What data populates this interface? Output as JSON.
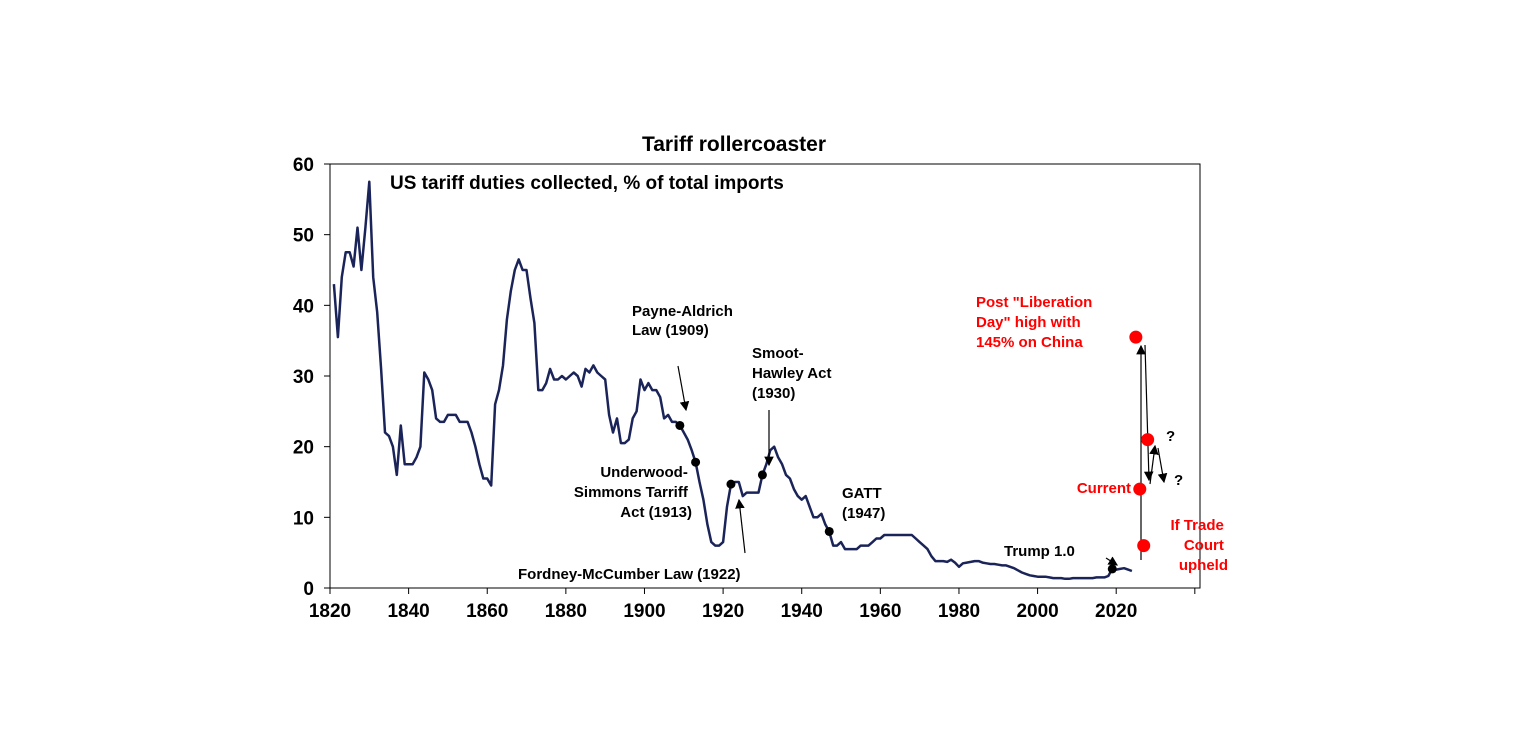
{
  "chart_data": {
    "type": "line",
    "title": "Tariff rollercoaster",
    "subtitle": "US tariff duties collected, % of total imports",
    "xlabel": "",
    "ylabel": "",
    "xlim": [
      1820,
      2040
    ],
    "ylim": [
      0,
      60
    ],
    "grid": false,
    "x_ticks": [
      "1820",
      "1840",
      "1860",
      "1880",
      "1900",
      "1920",
      "1940",
      "1960",
      "1980",
      "2000",
      "2020"
    ],
    "y_ticks": [
      "0",
      "10",
      "20",
      "30",
      "40",
      "50",
      "60"
    ],
    "series": [
      {
        "name": "",
        "color": "#1b2458",
        "points": [
          [
            1821,
            43
          ],
          [
            1822,
            35.5
          ],
          [
            1823,
            44
          ],
          [
            1824,
            47.5
          ],
          [
            1825,
            47.5
          ],
          [
            1826,
            45.5
          ],
          [
            1827,
            51
          ],
          [
            1828,
            45
          ],
          [
            1829,
            51
          ],
          [
            1830,
            57.5
          ],
          [
            1831,
            44
          ],
          [
            1832,
            39
          ],
          [
            1833,
            31
          ],
          [
            1834,
            22
          ],
          [
            1835,
            21.5
          ],
          [
            1836,
            20
          ],
          [
            1837,
            16
          ],
          [
            1838,
            23
          ],
          [
            1839,
            17.5
          ],
          [
            1840,
            17.5
          ],
          [
            1841,
            17.5
          ],
          [
            1842,
            18.5
          ],
          [
            1843,
            20
          ],
          [
            1844,
            30.5
          ],
          [
            1845,
            29.5
          ],
          [
            1846,
            28
          ],
          [
            1847,
            24
          ],
          [
            1848,
            23.5
          ],
          [
            1849,
            23.5
          ],
          [
            1850,
            24.5
          ],
          [
            1851,
            24.5
          ],
          [
            1852,
            24.5
          ],
          [
            1853,
            23.5
          ],
          [
            1854,
            23.5
          ],
          [
            1855,
            23.5
          ],
          [
            1856,
            22
          ],
          [
            1857,
            20
          ],
          [
            1858,
            17.5
          ],
          [
            1859,
            15.5
          ],
          [
            1860,
            15.5
          ],
          [
            1861,
            14.5
          ],
          [
            1862,
            26
          ],
          [
            1863,
            28
          ],
          [
            1864,
            31.5
          ],
          [
            1865,
            38
          ],
          [
            1866,
            42
          ],
          [
            1867,
            45
          ],
          [
            1868,
            46.5
          ],
          [
            1869,
            45
          ],
          [
            1870,
            45
          ],
          [
            1871,
            41
          ],
          [
            1872,
            37.5
          ],
          [
            1873,
            28
          ],
          [
            1874,
            28
          ],
          [
            1875,
            29
          ],
          [
            1876,
            31
          ],
          [
            1877,
            29.5
          ],
          [
            1878,
            29.5
          ],
          [
            1879,
            30
          ],
          [
            1880,
            29.5
          ],
          [
            1881,
            30
          ],
          [
            1882,
            30.5
          ],
          [
            1883,
            30
          ],
          [
            1884,
            28.5
          ],
          [
            1885,
            31
          ],
          [
            1886,
            30.5
          ],
          [
            1887,
            31.5
          ],
          [
            1888,
            30.5
          ],
          [
            1889,
            30
          ],
          [
            1890,
            29.5
          ],
          [
            1891,
            24.5
          ],
          [
            1892,
            22
          ],
          [
            1893,
            24
          ],
          [
            1894,
            20.5
          ],
          [
            1895,
            20.5
          ],
          [
            1896,
            21
          ],
          [
            1897,
            24
          ],
          [
            1898,
            25
          ],
          [
            1899,
            29.5
          ],
          [
            1900,
            28
          ],
          [
            1901,
            29
          ],
          [
            1902,
            28
          ],
          [
            1903,
            28
          ],
          [
            1904,
            27
          ],
          [
            1905,
            24
          ],
          [
            1906,
            24.5
          ],
          [
            1907,
            23.5
          ],
          [
            1908,
            23.5
          ],
          [
            1909,
            23
          ],
          [
            1910,
            22
          ],
          [
            1911,
            21
          ],
          [
            1912,
            19.5
          ],
          [
            1913,
            17.8
          ],
          [
            1914,
            15
          ],
          [
            1915,
            12.5
          ],
          [
            1916,
            9
          ],
          [
            1917,
            6.5
          ],
          [
            1918,
            6
          ],
          [
            1919,
            6
          ],
          [
            1920,
            6.5
          ],
          [
            1921,
            11.5
          ],
          [
            1922,
            14.7
          ],
          [
            1923,
            15
          ],
          [
            1924,
            15
          ],
          [
            1925,
            13
          ],
          [
            1926,
            13.5
          ],
          [
            1927,
            13.5
          ],
          [
            1928,
            13.5
          ],
          [
            1929,
            13.5
          ],
          [
            1930,
            16
          ],
          [
            1931,
            17.5
          ],
          [
            1932,
            19.5
          ],
          [
            1933,
            20
          ],
          [
            1934,
            18.5
          ],
          [
            1935,
            17.5
          ],
          [
            1936,
            16
          ],
          [
            1937,
            15.5
          ],
          [
            1938,
            14
          ],
          [
            1939,
            13
          ],
          [
            1940,
            12.5
          ],
          [
            1941,
            13
          ],
          [
            1942,
            11.5
          ],
          [
            1943,
            10
          ],
          [
            1944,
            10
          ],
          [
            1945,
            10.5
          ],
          [
            1946,
            9
          ],
          [
            1947,
            8
          ],
          [
            1948,
            6
          ],
          [
            1949,
            6
          ],
          [
            1950,
            6.5
          ],
          [
            1951,
            5.5
          ],
          [
            1952,
            5.5
          ],
          [
            1953,
            5.5
          ],
          [
            1954,
            5.5
          ],
          [
            1955,
            6
          ],
          [
            1956,
            6
          ],
          [
            1957,
            6
          ],
          [
            1958,
            6.5
          ],
          [
            1959,
            7
          ],
          [
            1960,
            7
          ],
          [
            1961,
            7.5
          ],
          [
            1962,
            7.5
          ],
          [
            1963,
            7.5
          ],
          [
            1964,
            7.5
          ],
          [
            1965,
            7.5
          ],
          [
            1966,
            7.5
          ],
          [
            1967,
            7.5
          ],
          [
            1968,
            7.5
          ],
          [
            1969,
            7
          ],
          [
            1970,
            6.5
          ],
          [
            1971,
            6
          ],
          [
            1972,
            5.5
          ],
          [
            1973,
            4.5
          ],
          [
            1974,
            3.8
          ],
          [
            1975,
            3.8
          ],
          [
            1976,
            3.8
          ],
          [
            1977,
            3.7
          ],
          [
            1978,
            4
          ],
          [
            1979,
            3.6
          ],
          [
            1980,
            3
          ],
          [
            1981,
            3.5
          ],
          [
            1982,
            3.6
          ],
          [
            1983,
            3.7
          ],
          [
            1984,
            3.8
          ],
          [
            1985,
            3.8
          ],
          [
            1986,
            3.6
          ],
          [
            1987,
            3.5
          ],
          [
            1988,
            3.4
          ],
          [
            1989,
            3.4
          ],
          [
            1990,
            3.3
          ],
          [
            1991,
            3.2
          ],
          [
            1992,
            3.2
          ],
          [
            1993,
            3
          ],
          [
            1994,
            2.8
          ],
          [
            1995,
            2.5
          ],
          [
            1996,
            2.2
          ],
          [
            1997,
            2
          ],
          [
            1998,
            1.8
          ],
          [
            1999,
            1.7
          ],
          [
            2000,
            1.6
          ],
          [
            2001,
            1.6
          ],
          [
            2002,
            1.6
          ],
          [
            2003,
            1.5
          ],
          [
            2004,
            1.4
          ],
          [
            2005,
            1.4
          ],
          [
            2006,
            1.4
          ],
          [
            2007,
            1.3
          ],
          [
            2008,
            1.3
          ],
          [
            2009,
            1.4
          ],
          [
            2010,
            1.4
          ],
          [
            2011,
            1.4
          ],
          [
            2012,
            1.4
          ],
          [
            2013,
            1.4
          ],
          [
            2014,
            1.4
          ],
          [
            2015,
            1.5
          ],
          [
            2016,
            1.5
          ],
          [
            2017,
            1.5
          ],
          [
            2018,
            1.7
          ],
          [
            2019,
            2.7
          ],
          [
            2020,
            2.6
          ],
          [
            2021,
            2.7
          ],
          [
            2022,
            2.8
          ],
          [
            2023,
            2.6
          ],
          [
            2024,
            2.4
          ]
        ]
      }
    ],
    "markers": [
      {
        "x": 1909,
        "y": 23,
        "color": "#000000"
      },
      {
        "x": 1913,
        "y": 17.8,
        "color": "#000000"
      },
      {
        "x": 1922,
        "y": 14.7,
        "color": "#000000"
      },
      {
        "x": 1930,
        "y": 16,
        "color": "#000000"
      },
      {
        "x": 1947,
        "y": 8,
        "color": "#000000"
      },
      {
        "x": 2019,
        "y": 2.7,
        "color": "#000000"
      },
      {
        "x": 2025,
        "y": 35.5,
        "color": "#ff0000"
      },
      {
        "x": 2026,
        "y": 14,
        "color": "#ff0000"
      },
      {
        "x": 2028,
        "y": 21,
        "color": "#ff0000"
      },
      {
        "x": 2027,
        "y": 6,
        "color": "#ff0000"
      }
    ],
    "annotations": {
      "payne_aldrich": [
        "Payne-Aldrich",
        "Law (1909)"
      ],
      "underwood": [
        "Underwood-",
        "Simmons Tarriff",
        "Act (1913)"
      ],
      "fordney": [
        "Fordney-McCumber Law (1922)"
      ],
      "smoot": [
        "Smoot-",
        "Hawley Act",
        "(1930)"
      ],
      "gatt": [
        "GATT",
        "(1947)"
      ],
      "trump": [
        "Trump 1.0"
      ],
      "liberation": [
        "Post \"Liberation",
        "Day\" high with",
        "145% on China"
      ],
      "current": [
        "Current"
      ],
      "trade_court": [
        "If Trade",
        "Court",
        "upheld"
      ],
      "question_marks": [
        "?",
        "?"
      ]
    },
    "accent_colors": {
      "line": "#1b2458",
      "highlight": "#ff0000",
      "marker": "#000000"
    }
  }
}
